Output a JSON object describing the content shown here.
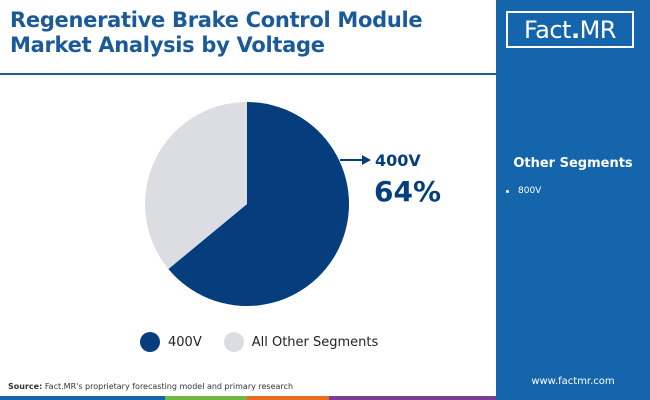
{
  "header": {
    "title": "Regenerative Brake Control Module Market Analysis by Voltage"
  },
  "chart_data": {
    "type": "pie",
    "categories": [
      "400V",
      "All Other Segments"
    ],
    "values": [
      64,
      36
    ],
    "colors": [
      "#063d7c",
      "#dcdde2"
    ],
    "callout": {
      "label": "400V",
      "value": "64%"
    },
    "legend_position": "bottom"
  },
  "legend": {
    "items": [
      {
        "label": "400V",
        "color": "#063d7c"
      },
      {
        "label": "All Other Segments",
        "color": "#dcdde2"
      }
    ]
  },
  "footer": {
    "source_label": "Source:",
    "source_text": "Fact.MR's proprietary forecasting model and primary research"
  },
  "bottom_bar_colors": [
    "#1565ad",
    "#74b843",
    "#e96d1e",
    "#7a3e96"
  ],
  "side_panel": {
    "logo_left": "Fact",
    "logo_dot": ".",
    "logo_right": "MR",
    "heading": "Other Segments",
    "items": [
      "800V"
    ],
    "website": "www.factmr.com",
    "background": "#1565ad"
  }
}
